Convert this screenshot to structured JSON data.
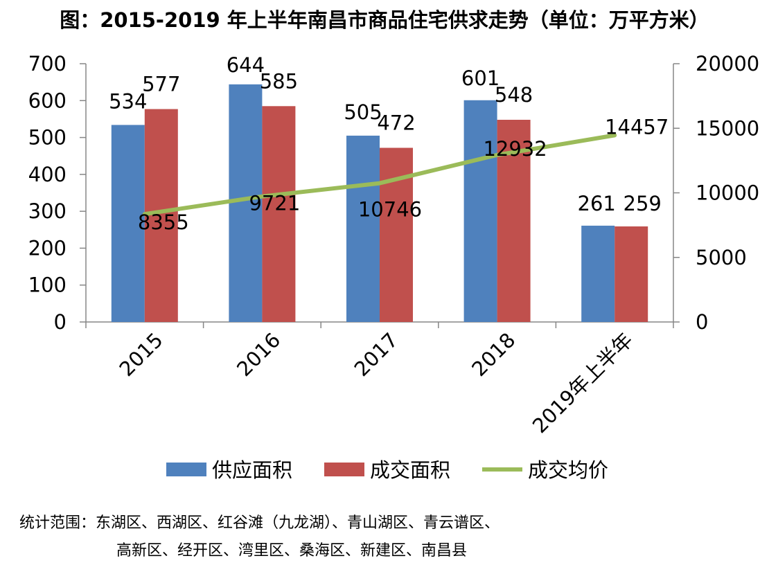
{
  "chart_data": {
    "type": "bar",
    "title": "图：2015-2019 年上半年南昌市商品住宅供求走势（单位：万平方米）",
    "categories": [
      "2015",
      "2016",
      "2017",
      "2018",
      "2019年上半年"
    ],
    "series": [
      {
        "name": "供应面积",
        "type": "bar",
        "axis": "left",
        "color": "#4F81BD",
        "values": [
          534,
          644,
          505,
          601,
          261
        ]
      },
      {
        "name": "成交面积",
        "type": "bar",
        "axis": "left",
        "color": "#C0504D",
        "values": [
          577,
          585,
          472,
          548,
          259
        ]
      },
      {
        "name": "成交均价",
        "type": "line",
        "axis": "right",
        "color": "#9BBB59",
        "values": [
          8355,
          9721,
          10746,
          12932,
          14457
        ]
      }
    ],
    "left_axis": {
      "min": 0,
      "max": 700,
      "ticks": [
        0,
        100,
        200,
        300,
        400,
        500,
        600,
        700
      ]
    },
    "right_axis": {
      "min": 0,
      "max": 20000,
      "ticks": [
        0,
        5000,
        10000,
        15000,
        20000
      ]
    },
    "legend_position": "bottom",
    "grid": false
  },
  "note": {
    "line1": "统计范围：东湖区、西湖区、红谷滩（九龙湖）、青山湖区、青云谱区、",
    "line2": "高新区、经开区、湾里区、桑海区、新建区、南昌县"
  }
}
